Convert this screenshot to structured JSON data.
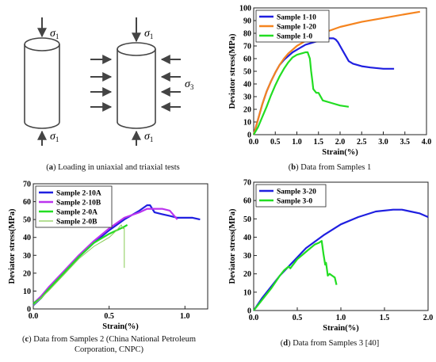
{
  "panels": {
    "a": {
      "tag": "a",
      "caption": "Loading in uniaxial and triaxial tests",
      "sigma1": "σ",
      "sigma_sub1": "1",
      "sigma_sub3": "3"
    },
    "b": {
      "tag": "b",
      "caption": "Data from Samples 1"
    },
    "c": {
      "tag": "c",
      "caption_line1": "Data from Samples 2 (China National Petroleum",
      "caption_line2": "Corporation, CNPC)"
    },
    "d": {
      "tag": "d",
      "caption": "Data from Samples 3 [40]"
    }
  },
  "chart_data": [
    {
      "id": "b",
      "type": "line",
      "xlabel": "Strain(%)",
      "ylabel": "Deviator stress(MPa)",
      "xlim": [
        0,
        4.0
      ],
      "ylim": [
        0,
        100
      ],
      "xticks": [
        "0.0",
        "0.5",
        "1.0",
        "1.5",
        "2.0",
        "2.5",
        "3.0",
        "3.5",
        "4.0"
      ],
      "yticks": [
        "0",
        "10",
        "20",
        "30",
        "40",
        "50",
        "60",
        "70",
        "80",
        "90",
        "100"
      ],
      "legend_position": "top-left",
      "series": [
        {
          "name": "Sample 1-10",
          "color": "#1f1fe0",
          "x": [
            0,
            0.1,
            0.2,
            0.3,
            0.4,
            0.5,
            0.6,
            0.7,
            0.8,
            0.9,
            1.0,
            1.1,
            1.2,
            1.3,
            1.4,
            1.5,
            1.6,
            1.7,
            1.8,
            1.85,
            1.9,
            1.95,
            2.0,
            2.05,
            2.1,
            2.15,
            2.2,
            2.3,
            2.5,
            2.7,
            3.0,
            3.25
          ],
          "y": [
            0,
            12,
            24,
            34,
            42,
            49,
            55,
            59,
            62,
            65,
            67,
            69,
            71,
            72,
            73,
            74,
            75,
            76,
            76,
            76,
            75,
            73,
            70,
            67,
            64,
            61,
            58,
            56,
            54,
            53,
            52,
            52
          ]
        },
        {
          "name": "Sample 1-20",
          "color": "#f5841f",
          "x": [
            0,
            0.1,
            0.2,
            0.3,
            0.4,
            0.5,
            0.6,
            0.7,
            0.8,
            1.0,
            1.2,
            1.5,
            2.0,
            2.5,
            3.0,
            3.5,
            3.85
          ],
          "y": [
            0,
            12,
            24,
            34,
            42,
            49,
            55,
            60,
            64,
            70,
            74,
            79,
            85,
            89,
            92,
            95,
            97
          ]
        },
        {
          "name": "Sample 1-0",
          "color": "#22dd22",
          "x": [
            0,
            0.1,
            0.2,
            0.3,
            0.4,
            0.5,
            0.6,
            0.7,
            0.8,
            0.9,
            1.0,
            1.1,
            1.2,
            1.25,
            1.3,
            1.33,
            1.36,
            1.38,
            1.45,
            1.5,
            1.6,
            1.8,
            2.0,
            2.2
          ],
          "y": [
            0,
            6,
            14,
            22,
            31,
            39,
            46,
            52,
            57,
            61,
            63,
            64,
            65,
            65,
            60,
            50,
            42,
            36,
            33,
            33,
            27,
            25,
            23,
            22
          ]
        }
      ]
    },
    {
      "id": "c",
      "type": "line",
      "xlabel": "Strain(%)",
      "ylabel": "Deviator stress(MPa)",
      "xlim": [
        0,
        1.15
      ],
      "ylim": [
        0,
        70
      ],
      "xticks": [
        "0.0",
        "0.5",
        "1.0"
      ],
      "yticks": [
        "0",
        "10",
        "20",
        "30",
        "40",
        "50",
        "60",
        "70"
      ],
      "legend_position": "top-left",
      "series": [
        {
          "name": "Sample 2-10A",
          "color": "#1f1fe0",
          "x": [
            0,
            0.05,
            0.1,
            0.2,
            0.3,
            0.4,
            0.5,
            0.6,
            0.7,
            0.75,
            0.77,
            0.8,
            0.85,
            0.9,
            0.95,
            1.0,
            1.05,
            1.1
          ],
          "y": [
            2,
            6,
            11,
            20,
            29,
            37,
            44,
            50,
            55,
            58,
            58,
            54,
            53,
            52,
            51,
            51,
            51,
            50
          ]
        },
        {
          "name": "Sample 2-10B",
          "color": "#bb33ee",
          "x": [
            0,
            0.05,
            0.1,
            0.2,
            0.3,
            0.4,
            0.5,
            0.6,
            0.7,
            0.75,
            0.8,
            0.85,
            0.9,
            0.95
          ],
          "y": [
            3,
            7,
            12,
            21,
            30,
            38,
            45,
            51,
            54,
            56,
            56,
            56,
            55,
            50
          ]
        },
        {
          "name": "Sample 2-0A",
          "color": "#22dd22",
          "x": [
            0,
            0.05,
            0.1,
            0.2,
            0.3,
            0.4,
            0.5,
            0.55,
            0.6,
            0.62
          ],
          "y": [
            3,
            6,
            11,
            20,
            29,
            37,
            42,
            44,
            46,
            47
          ]
        },
        {
          "name": "Sample 2-0B",
          "color": "#88cc55",
          "x": [
            0,
            0.1,
            0.2,
            0.3,
            0.4,
            0.5,
            0.55,
            0.58,
            0.59,
            0.6,
            0.6
          ],
          "y": [
            2,
            10,
            19,
            28,
            35,
            40,
            44,
            47,
            45,
            45,
            23
          ]
        }
      ]
    },
    {
      "id": "d",
      "type": "line",
      "xlabel": "Strain(%)",
      "ylabel": "Deviator stress(MPa)",
      "xlim": [
        0,
        2.0
      ],
      "ylim": [
        0,
        70
      ],
      "xticks": [
        "0.0",
        "0.5",
        "1.0",
        "1.5",
        "2.0"
      ],
      "yticks": [
        "0",
        "10",
        "20",
        "30",
        "40",
        "50",
        "60",
        "70"
      ],
      "legend_position": "top-left",
      "series": [
        {
          "name": "Sample 3-20",
          "color": "#1f1fe0",
          "x": [
            0,
            0.1,
            0.2,
            0.3,
            0.4,
            0.5,
            0.6,
            0.8,
            1.0,
            1.2,
            1.4,
            1.6,
            1.7,
            1.8,
            1.9,
            2.0
          ],
          "y": [
            0,
            7,
            13,
            19,
            24,
            29,
            34,
            41,
            47,
            51,
            54,
            55,
            55,
            54,
            53,
            51
          ]
        },
        {
          "name": "Sample 3-0",
          "color": "#22dd22",
          "x": [
            0,
            0.1,
            0.2,
            0.3,
            0.35,
            0.4,
            0.42,
            0.5,
            0.6,
            0.7,
            0.75,
            0.78,
            0.8,
            0.82,
            0.83,
            0.85,
            0.87,
            0.9,
            0.93,
            0.95
          ],
          "y": [
            0,
            6,
            12,
            19,
            22,
            24,
            23,
            28,
            32,
            36,
            37,
            38,
            31,
            25,
            26,
            19,
            20,
            19,
            18,
            14
          ]
        }
      ]
    }
  ]
}
